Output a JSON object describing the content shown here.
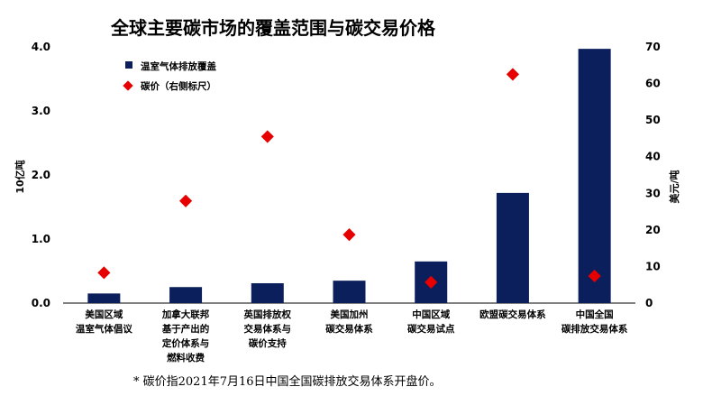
{
  "chart_data": {
    "type": "bar",
    "title": "全球主要碳市场的覆盖范围与碳交易价格",
    "categories": [
      [
        "美国区域",
        "温室气体倡议"
      ],
      [
        "加拿大联邦",
        "基于产出的",
        "定价体系与",
        "燃料收费"
      ],
      [
        "英国排放权",
        "交易体系与",
        "碳价支持"
      ],
      [
        "美国加州",
        "碳交易体系"
      ],
      [
        "中国区域",
        "碳交易试点"
      ],
      [
        "欧盟碳交易体系"
      ],
      [
        "中国全国",
        "碳排放交易体系"
      ]
    ],
    "series": [
      {
        "name": "温室气体排放覆盖",
        "kind": "bar",
        "axis": "left",
        "color": "#0b1f5c",
        "values": [
          0.15,
          0.25,
          0.31,
          0.35,
          0.65,
          1.72,
          3.97
        ]
      },
      {
        "name": "碳价（右侧标尺）",
        "kind": "marker",
        "axis": "right",
        "color": "#e60000",
        "values": [
          8.3,
          27.9,
          45.5,
          18.7,
          5.7,
          62.5,
          7.4
        ]
      }
    ],
    "ylabel": "10亿吨",
    "y2label": "美元/吨",
    "ylim": [
      0,
      4
    ],
    "y2lim": [
      0,
      70
    ],
    "yticks": [
      "0.0",
      "1.0",
      "2.0",
      "3.0",
      "4.0"
    ],
    "y2ticks": [
      "0",
      "10",
      "20",
      "30",
      "40",
      "50",
      "60",
      "70"
    ],
    "legend_position": "top-left",
    "grid": false,
    "footnote": "* 碳价指2021年7月16日中国全国碳排放交易体系开盘价。"
  }
}
